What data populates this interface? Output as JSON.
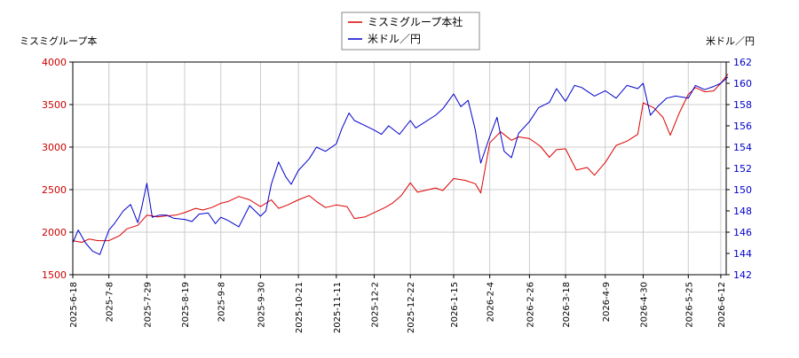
{
  "chart_data": {
    "type": "line",
    "left_axis_label": "ミスミグループ本",
    "right_axis_label": "米ドル／円",
    "legend_position": "top-center",
    "grid": true,
    "ylim_left": [
      1500,
      4000
    ],
    "ylim_right": [
      142,
      162
    ],
    "yticks_left": [
      1500,
      2000,
      2500,
      3000,
      3500,
      4000
    ],
    "yticks_right": [
      142,
      144,
      146,
      148,
      150,
      152,
      154,
      156,
      158,
      160,
      162
    ],
    "xticks": [
      "2025-6-18",
      "2025-7-8",
      "2025-7-29",
      "2025-8-19",
      "2025-9-8",
      "2025-9-30",
      "2025-10-21",
      "2025-11-11",
      "2025-12-2",
      "2025-12-22",
      "2026-1-15",
      "2026-2-4",
      "2026-2-26",
      "2026-3-18",
      "2026-4-9",
      "2026-4-30",
      "2026-5-25",
      "2026-6-12"
    ],
    "series": [
      {
        "name": "ミスミグループ本社",
        "axis": "left",
        "color": "#dd0000",
        "points": [
          [
            "2025-6-18",
            1900
          ],
          [
            "2025-6-23",
            1880
          ],
          [
            "2025-6-27",
            1920
          ],
          [
            "2025-7-2",
            1900
          ],
          [
            "2025-7-8",
            1900
          ],
          [
            "2025-7-14",
            1960
          ],
          [
            "2025-7-18",
            2040
          ],
          [
            "2025-7-24",
            2080
          ],
          [
            "2025-7-29",
            2200
          ],
          [
            "2025-8-4",
            2180
          ],
          [
            "2025-8-8",
            2190
          ],
          [
            "2025-8-14",
            2200
          ],
          [
            "2025-8-19",
            2230
          ],
          [
            "2025-8-25",
            2280
          ],
          [
            "2025-8-29",
            2260
          ],
          [
            "2025-9-3",
            2290
          ],
          [
            "2025-9-8",
            2340
          ],
          [
            "2025-9-12",
            2360
          ],
          [
            "2025-9-18",
            2420
          ],
          [
            "2025-9-24",
            2380
          ],
          [
            "2025-9-30",
            2300
          ],
          [
            "2025-10-6",
            2380
          ],
          [
            "2025-10-10",
            2280
          ],
          [
            "2025-10-15",
            2320
          ],
          [
            "2025-10-21",
            2380
          ],
          [
            "2025-10-27",
            2430
          ],
          [
            "2025-10-31",
            2360
          ],
          [
            "2025-11-5",
            2290
          ],
          [
            "2025-11-11",
            2320
          ],
          [
            "2025-11-17",
            2300
          ],
          [
            "2025-11-21",
            2160
          ],
          [
            "2025-11-27",
            2180
          ],
          [
            "2025-12-2",
            2230
          ],
          [
            "2025-12-8",
            2290
          ],
          [
            "2025-12-12",
            2340
          ],
          [
            "2025-12-17",
            2430
          ],
          [
            "2025-12-22",
            2580
          ],
          [
            "2025-12-26",
            2470
          ],
          [
            "2026-1-5",
            2520
          ],
          [
            "2026-1-9",
            2490
          ],
          [
            "2026-1-15",
            2630
          ],
          [
            "2026-1-21",
            2610
          ],
          [
            "2026-1-27",
            2570
          ],
          [
            "2026-1-30",
            2460
          ],
          [
            "2026-2-4",
            3050
          ],
          [
            "2026-2-10",
            3180
          ],
          [
            "2026-2-16",
            3080
          ],
          [
            "2026-2-20",
            3120
          ],
          [
            "2026-2-26",
            3100
          ],
          [
            "2026-3-4",
            3010
          ],
          [
            "2026-3-9",
            2880
          ],
          [
            "2026-3-13",
            2970
          ],
          [
            "2026-3-18",
            2980
          ],
          [
            "2026-3-24",
            2730
          ],
          [
            "2026-3-30",
            2760
          ],
          [
            "2026-4-3",
            2670
          ],
          [
            "2026-4-9",
            2820
          ],
          [
            "2026-4-15",
            3020
          ],
          [
            "2026-4-21",
            3070
          ],
          [
            "2026-4-27",
            3150
          ],
          [
            "2026-4-30",
            3520
          ],
          [
            "2026-5-6",
            3460
          ],
          [
            "2026-5-11",
            3350
          ],
          [
            "2026-5-15",
            3140
          ],
          [
            "2026-5-20",
            3400
          ],
          [
            "2026-5-25",
            3620
          ],
          [
            "2026-5-29",
            3700
          ],
          [
            "2026-6-3",
            3650
          ],
          [
            "2026-6-8",
            3660
          ],
          [
            "2026-6-12",
            3750
          ],
          [
            "2026-6-16",
            3860
          ]
        ]
      },
      {
        "name": "米ドル／円",
        "axis": "right",
        "color": "#0000cc",
        "points": [
          [
            "2025-6-18",
            145.0
          ],
          [
            "2025-6-21",
            146.2
          ],
          [
            "2025-6-25",
            145.0
          ],
          [
            "2025-6-29",
            144.2
          ],
          [
            "2025-7-3",
            143.9
          ],
          [
            "2025-7-8",
            146.2
          ],
          [
            "2025-7-11",
            146.8
          ],
          [
            "2025-7-16",
            148.0
          ],
          [
            "2025-7-20",
            148.6
          ],
          [
            "2025-7-24",
            146.9
          ],
          [
            "2025-7-26",
            148.2
          ],
          [
            "2025-7-29",
            150.6
          ],
          [
            "2025-8-1",
            147.4
          ],
          [
            "2025-8-5",
            147.6
          ],
          [
            "2025-8-9",
            147.6
          ],
          [
            "2025-8-13",
            147.3
          ],
          [
            "2025-8-19",
            147.2
          ],
          [
            "2025-8-23",
            147.0
          ],
          [
            "2025-8-27",
            147.7
          ],
          [
            "2025-9-1",
            147.8
          ],
          [
            "2025-9-5",
            146.8
          ],
          [
            "2025-9-8",
            147.4
          ],
          [
            "2025-9-12",
            147.1
          ],
          [
            "2025-9-18",
            146.5
          ],
          [
            "2025-9-24",
            148.5
          ],
          [
            "2025-9-30",
            147.5
          ],
          [
            "2025-10-3",
            148.0
          ],
          [
            "2025-10-6",
            150.5
          ],
          [
            "2025-10-10",
            152.6
          ],
          [
            "2025-10-14",
            151.2
          ],
          [
            "2025-10-17",
            150.5
          ],
          [
            "2025-10-21",
            151.8
          ],
          [
            "2025-10-27",
            152.9
          ],
          [
            "2025-10-31",
            154.0
          ],
          [
            "2025-11-5",
            153.6
          ],
          [
            "2025-11-11",
            154.3
          ],
          [
            "2025-11-14",
            155.7
          ],
          [
            "2025-11-18",
            157.2
          ],
          [
            "2025-11-21",
            156.5
          ],
          [
            "2025-11-26",
            156.1
          ],
          [
            "2025-12-2",
            155.6
          ],
          [
            "2025-12-6",
            155.2
          ],
          [
            "2025-12-10",
            156.0
          ],
          [
            "2025-12-16",
            155.2
          ],
          [
            "2025-12-22",
            156.5
          ],
          [
            "2025-12-25",
            155.8
          ],
          [
            "2026-1-5",
            157.0
          ],
          [
            "2026-1-9",
            157.6
          ],
          [
            "2026-1-15",
            159.0
          ],
          [
            "2026-1-19",
            157.8
          ],
          [
            "2026-1-23",
            158.4
          ],
          [
            "2026-1-27",
            155.6
          ],
          [
            "2026-1-30",
            152.5
          ],
          [
            "2026-2-4",
            155.0
          ],
          [
            "2026-2-8",
            156.8
          ],
          [
            "2026-2-12",
            153.6
          ],
          [
            "2026-2-16",
            153.0
          ],
          [
            "2026-2-20",
            155.3
          ],
          [
            "2026-2-26",
            156.4
          ],
          [
            "2026-3-3",
            157.7
          ],
          [
            "2026-3-9",
            158.2
          ],
          [
            "2026-3-13",
            159.5
          ],
          [
            "2026-3-18",
            158.3
          ],
          [
            "2026-3-23",
            159.8
          ],
          [
            "2026-3-27",
            159.6
          ],
          [
            "2026-4-3",
            158.8
          ],
          [
            "2026-4-9",
            159.3
          ],
          [
            "2026-4-15",
            158.6
          ],
          [
            "2026-4-21",
            159.8
          ],
          [
            "2026-4-27",
            159.5
          ],
          [
            "2026-4-30",
            160.0
          ],
          [
            "2026-5-4",
            157.0
          ],
          [
            "2026-5-8",
            157.8
          ],
          [
            "2026-5-13",
            158.6
          ],
          [
            "2026-5-18",
            158.8
          ],
          [
            "2026-5-25",
            158.6
          ],
          [
            "2026-5-29",
            159.8
          ],
          [
            "2026-6-3",
            159.4
          ],
          [
            "2026-6-8",
            159.7
          ],
          [
            "2026-6-12",
            160.0
          ],
          [
            "2026-6-16",
            160.6
          ]
        ]
      }
    ]
  }
}
